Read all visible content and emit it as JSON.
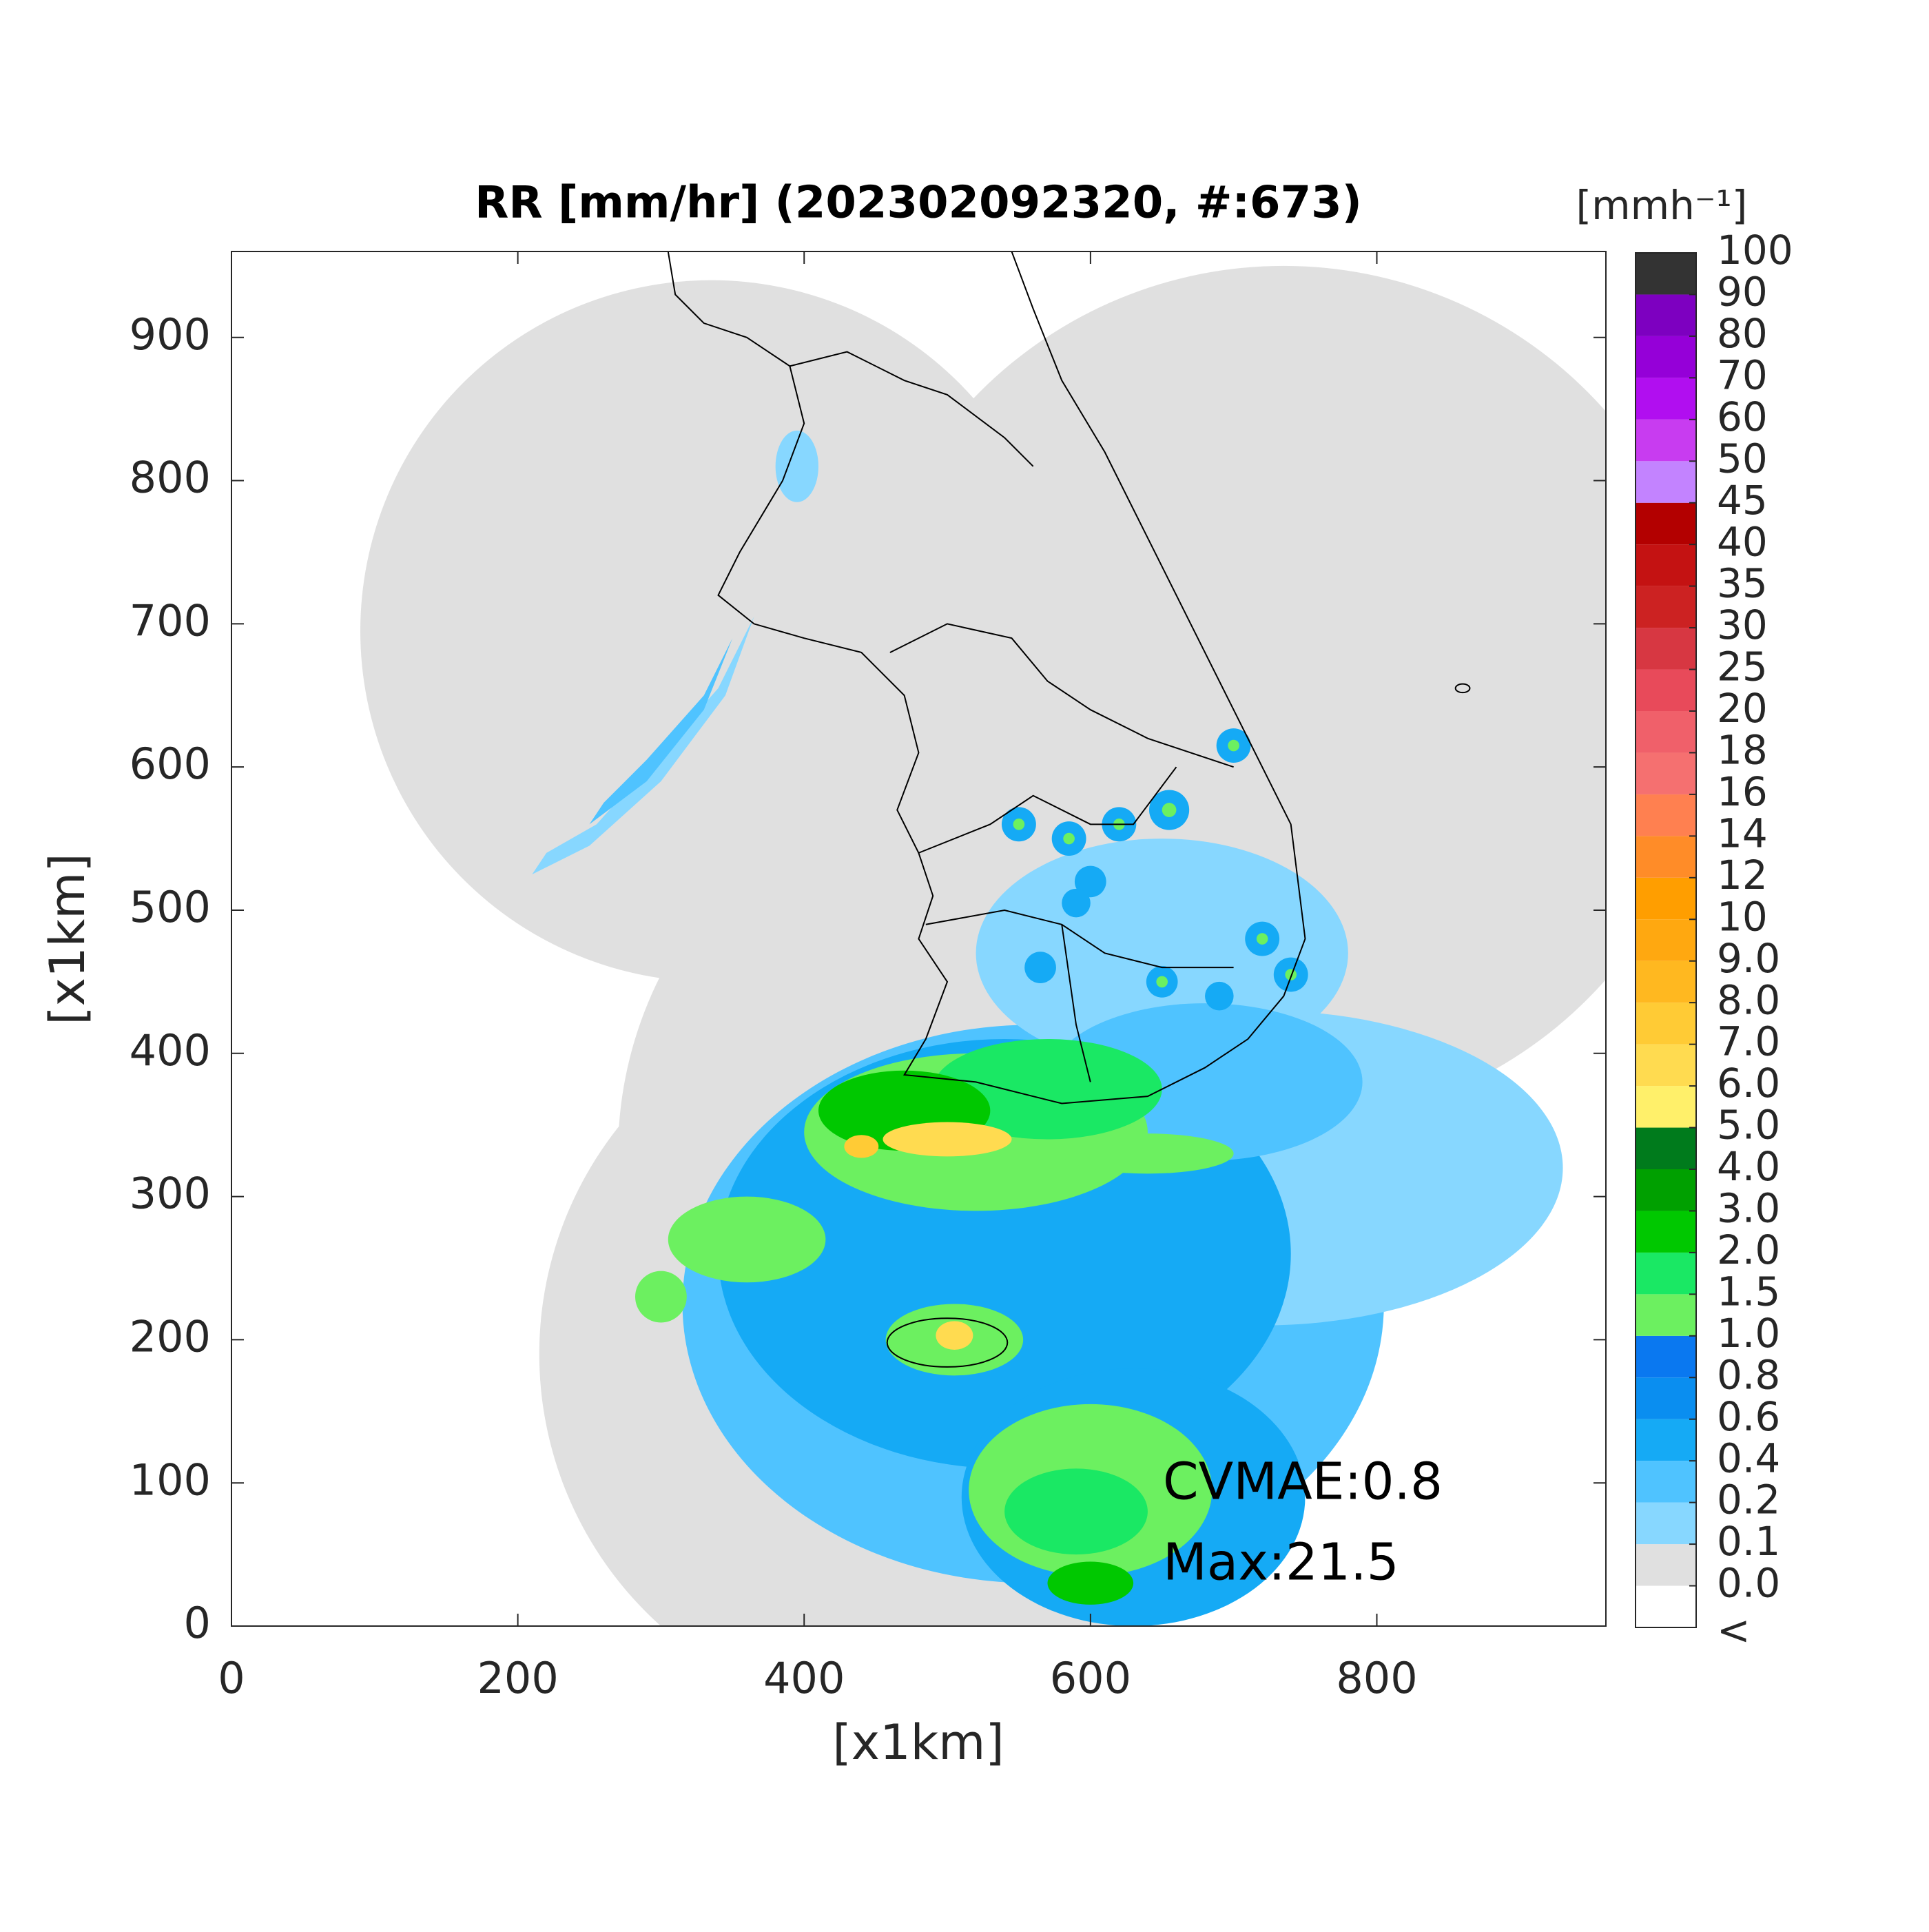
{
  "chart_data": {
    "type": "map",
    "title": "RR [mm/hr] (202302092320, #:673)",
    "xlabel": "[x1km]",
    "ylabel": "[x1km]",
    "xlim": [
      0,
      960
    ],
    "ylim": [
      0,
      960
    ],
    "xticks": [
      0,
      200,
      400,
      600,
      800
    ],
    "yticks": [
      0,
      100,
      200,
      300,
      400,
      500,
      600,
      700,
      800,
      900
    ],
    "annotations": [
      "CVMAE:0.8",
      "Max:21.5"
    ],
    "colorbar": {
      "label": "[mmh⁻¹]",
      "under_label": "<",
      "levels": [
        {
          "value": 0,
          "label": "0.0"
        },
        0.1,
        0.2,
        0.4,
        0.6,
        0.8,
        {
          "value": 1,
          "label": "1.0"
        },
        1.5,
        {
          "value": 2,
          "label": "2.0"
        },
        {
          "value": 3,
          "label": "3.0"
        },
        {
          "value": 4,
          "label": "4.0"
        },
        {
          "value": 5,
          "label": "5.0"
        },
        {
          "value": 6,
          "label": "6.0"
        },
        {
          "value": 7,
          "label": "7.0"
        },
        {
          "value": 8,
          "label": "8.0"
        },
        {
          "value": 9,
          "label": "9.0"
        },
        10,
        12,
        14,
        16,
        18,
        20,
        25,
        30,
        35,
        40,
        45,
        50,
        60,
        70,
        80,
        90,
        100
      ],
      "colors": [
        "#ffffff",
        "#e0e0e0",
        "#87d7ff",
        "#4fc3ff",
        "#15aaf5",
        "#0a8ef0",
        "#0a78f0",
        "#6cf060",
        "#1ae864",
        "#00c800",
        "#00a000",
        "#007b1c",
        "#fff06a",
        "#ffdb50",
        "#ffcb35",
        "#ffb820",
        "#ffa810",
        "#ff9e00",
        "#ff8c28",
        "#ff8050",
        "#f57070",
        "#f0606a",
        "#e84a5a",
        "#d73742",
        "#cc2222",
        "#c41212",
        "#b30000",
        "#c383ff",
        "#c83cf0",
        "#b10ef0",
        "#9500d8",
        "#7d00c0",
        "#333333"
      ]
    }
  }
}
